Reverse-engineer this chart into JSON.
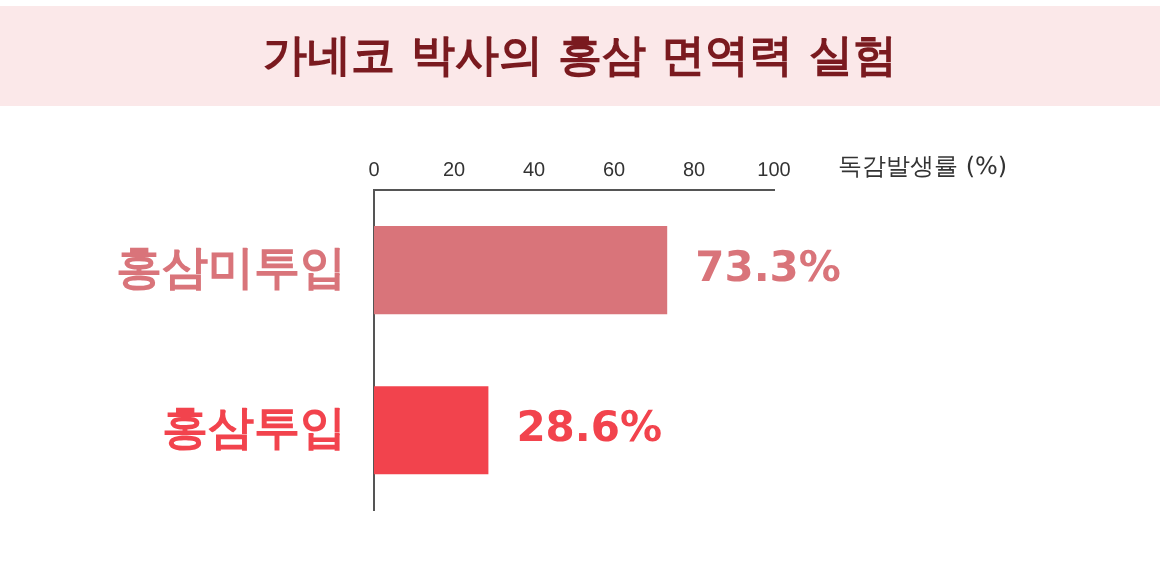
{
  "chart_data": {
    "type": "bar",
    "orientation": "horizontal",
    "title": "가네코 박사의 홍삼 면역력 실험",
    "xlabel": "독감발생률 (%)",
    "categories": [
      "홍삼미투입",
      "홍삼투입"
    ],
    "values": [
      73.3,
      28.6
    ],
    "colors": [
      "#d9747a",
      "#f2434d"
    ],
    "value_labels": [
      "73.3%",
      "28.6%"
    ],
    "xlim": [
      0,
      100
    ],
    "xticks": [
      0,
      20,
      40,
      60,
      80,
      100
    ],
    "grid": false,
    "legend": false
  }
}
